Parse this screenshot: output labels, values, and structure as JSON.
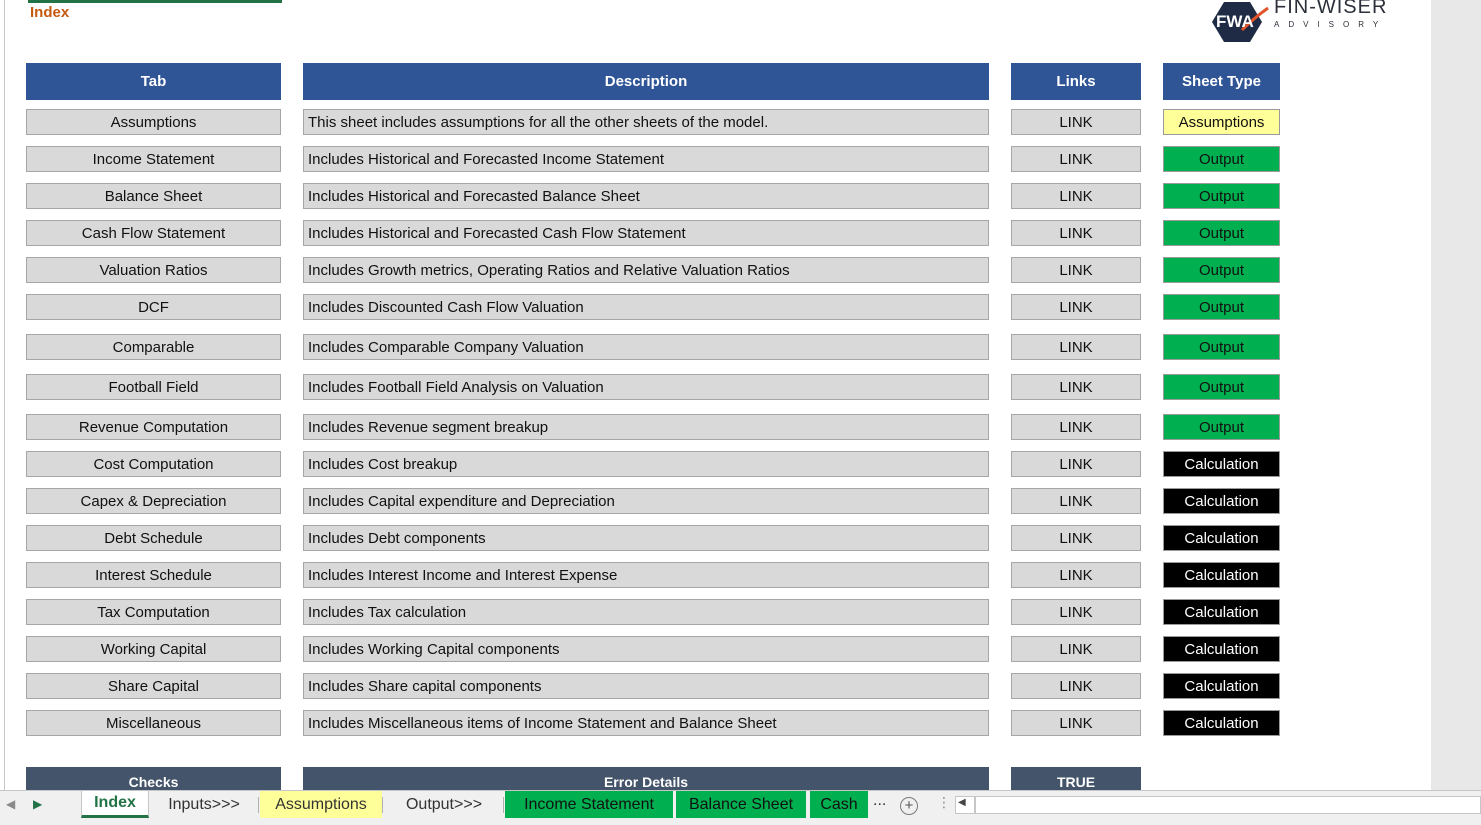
{
  "sheet": {
    "title": "Index"
  },
  "logo": {
    "mark": "FWA",
    "name": "FIN-WISER",
    "tagline": "ADVISORY"
  },
  "headers": {
    "tab": "Tab",
    "description": "Description",
    "links": "Links",
    "sheet_type": "Sheet Type"
  },
  "rows": [
    {
      "tab": "Assumptions",
      "description": "This sheet includes assumptions for all the other sheets of the model.",
      "link": "LINK",
      "type": "Assumptions"
    },
    {
      "tab": "Income Statement",
      "description": "Includes Historical and Forecasted Income Statement",
      "link": "LINK",
      "type": "Output"
    },
    {
      "tab": "Balance Sheet",
      "description": "Includes Historical and Forecasted Balance Sheet",
      "link": "LINK",
      "type": "Output"
    },
    {
      "tab": "Cash Flow Statement",
      "description": "Includes Historical and Forecasted Cash Flow Statement",
      "link": "LINK",
      "type": "Output"
    },
    {
      "tab": "Valuation Ratios",
      "description": "Includes Growth metrics, Operating Ratios and Relative Valuation Ratios",
      "link": "LINK",
      "type": "Output"
    },
    {
      "tab": "DCF",
      "description": "Includes Discounted Cash Flow Valuation",
      "link": "LINK",
      "type": "Output"
    },
    {
      "tab": "Comparable",
      "description": "Includes Comparable Company Valuation",
      "link": "LINK",
      "type": "Output"
    },
    {
      "tab": "Football Field",
      "description": "Includes Football Field Analysis on Valuation",
      "link": "LINK",
      "type": "Output"
    },
    {
      "tab": "Revenue Computation",
      "description": "Includes Revenue segment breakup",
      "link": "LINK",
      "type": "Output"
    },
    {
      "tab": "Cost Computation",
      "description": "Includes Cost breakup",
      "link": "LINK",
      "type": "Calculation"
    },
    {
      "tab": "Capex & Depreciation",
      "description": "Includes Capital expenditure and Depreciation",
      "link": "LINK",
      "type": "Calculation"
    },
    {
      "tab": "Debt Schedule",
      "description": "Includes Debt components",
      "link": "LINK",
      "type": "Calculation"
    },
    {
      "tab": "Interest Schedule",
      "description": "Includes Interest Income and Interest Expense",
      "link": "LINK",
      "type": "Calculation"
    },
    {
      "tab": "Tax Computation",
      "description": "Includes Tax calculation",
      "link": "LINK",
      "type": "Calculation"
    },
    {
      "tab": "Working Capital",
      "description": "Includes Working Capital components",
      "link": "LINK",
      "type": "Calculation"
    },
    {
      "tab": "Share Capital",
      "description": "Includes Share capital components",
      "link": "LINK",
      "type": "Calculation"
    },
    {
      "tab": "Miscellaneous",
      "description": "Includes Miscellaneous items of Income Statement and Balance Sheet",
      "link": "LINK",
      "type": "Calculation"
    }
  ],
  "checks": {
    "checks_label": "Checks",
    "error_label": "Error Details",
    "status": "TRUE"
  },
  "sheet_tabs": [
    {
      "label": "Index",
      "style": "active"
    },
    {
      "label": "Inputs>>>",
      "style": "plain"
    },
    {
      "label": "Assumptions",
      "style": "yellow"
    },
    {
      "label": "Output>>>",
      "style": "plain"
    },
    {
      "label": "Income Statement",
      "style": "green"
    },
    {
      "label": "Balance Sheet",
      "style": "green"
    },
    {
      "label": "Cash",
      "style": "green"
    }
  ],
  "tabbar": {
    "more": "...",
    "add": "+"
  },
  "colors": {
    "header_blue": "#2f5597",
    "header_slate": "#44546a",
    "assumptions": "#ffff99",
    "output": "#00b050",
    "calculation": "#000000",
    "index_orange": "#c55a11",
    "excel_green": "#217346"
  }
}
